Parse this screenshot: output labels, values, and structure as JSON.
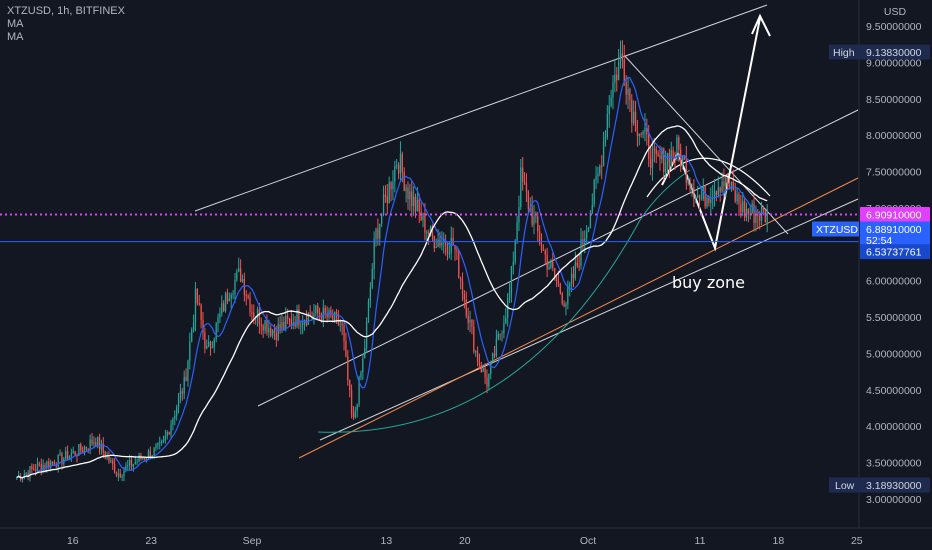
{
  "header": {
    "symbol_line": "XTZUSD, 1h, BITFINEX",
    "indicators": [
      "MA",
      "MA"
    ]
  },
  "chart_data": {
    "type": "candlestick",
    "symbol": "XTZUSD",
    "timeframe": "1h",
    "exchange": "BITFINEX",
    "currency_label": "USD",
    "y_ticks": [
      "9.50000000",
      "9.00000000",
      "8.50000000",
      "8.00000000",
      "7.50000000",
      "7.00000000",
      "6.50000000",
      "6.00000000",
      "5.50000000",
      "5.00000000",
      "4.50000000",
      "4.00000000",
      "3.50000000",
      "3.00000000"
    ],
    "ylim": [
      2.88,
      9.95
    ],
    "x_ticks": [
      "16",
      "23",
      "Sep",
      "13",
      "20",
      "Oct",
      "11",
      "18",
      "25"
    ],
    "xlim": [
      "Aug 11",
      "Oct 27"
    ],
    "price_path": [
      [
        "Aug 11",
        3.3
      ],
      [
        "Aug 13",
        3.45
      ],
      [
        "Aug 15",
        3.55
      ],
      [
        "Aug 17",
        3.7
      ],
      [
        "Aug 18",
        3.82
      ],
      [
        "Aug 20",
        3.35
      ],
      [
        "Aug 22",
        3.55
      ],
      [
        "Aug 24",
        3.72
      ],
      [
        "Aug 26",
        4.6
      ],
      [
        "Aug 27",
        5.8
      ],
      [
        "Aug 28",
        5.0
      ],
      [
        "Aug 30",
        5.9
      ],
      [
        "Aug 31",
        6.1
      ],
      [
        "Sep 1",
        5.6
      ],
      [
        "Sep 3",
        5.3
      ],
      [
        "Sep 5",
        5.5
      ],
      [
        "Sep 7",
        5.55
      ],
      [
        "Sep 9",
        5.4
      ],
      [
        "Sep 10",
        4.0
      ],
      [
        "Sep 11",
        5.0
      ],
      [
        "Sep 12",
        6.6
      ],
      [
        "Sep 14",
        7.7
      ],
      [
        "Sep 15",
        7.2
      ],
      [
        "Sep 17",
        6.6
      ],
      [
        "Sep 19",
        6.5
      ],
      [
        "Sep 21",
        5.0
      ],
      [
        "Sep 22",
        4.6
      ],
      [
        "Sep 24",
        5.8
      ],
      [
        "Sep 25",
        7.4
      ],
      [
        "Sep 27",
        6.4
      ],
      [
        "Sep 29",
        5.7
      ],
      [
        "Sep 30",
        6.2
      ],
      [
        "Oct 2",
        7.5
      ],
      [
        "Oct 3",
        8.6
      ],
      [
        "Oct 4",
        9.1
      ],
      [
        "Oct 5",
        8.3
      ],
      [
        "Oct 7",
        7.6
      ],
      [
        "Oct 9",
        7.8
      ],
      [
        "Oct 11",
        7.1
      ],
      [
        "Oct 13",
        7.4
      ],
      [
        "Oct 15",
        6.95
      ],
      [
        "Oct 17",
        6.9
      ]
    ],
    "moving_averages": [
      {
        "name": "MA",
        "color": "#ffffff"
      },
      {
        "name": "MA",
        "color": "#2962ff"
      }
    ],
    "price_labels": {
      "high_label": "High",
      "high_value": "9.13830000",
      "current_value": "6.90910000",
      "symbol_tag": "XTZUSD",
      "last_value": "6.88910000",
      "countdown": "52:54",
      "horizontal_line_value": "6.53737761",
      "low_label": "Low",
      "low_value": "3.18930000"
    },
    "annotations": [
      "buy zone"
    ],
    "colors": {
      "up": "#26a69a",
      "down": "#ef5350",
      "background": "#131722",
      "high_low_tag": "#1e2b4f",
      "current_tag": "#e040fb",
      "symbol_tag": "#2962ff",
      "dotted_line": "#e040fb",
      "hline": "#2962ff",
      "support_line": "#f28a4e",
      "arc": "#26a69a"
    }
  }
}
